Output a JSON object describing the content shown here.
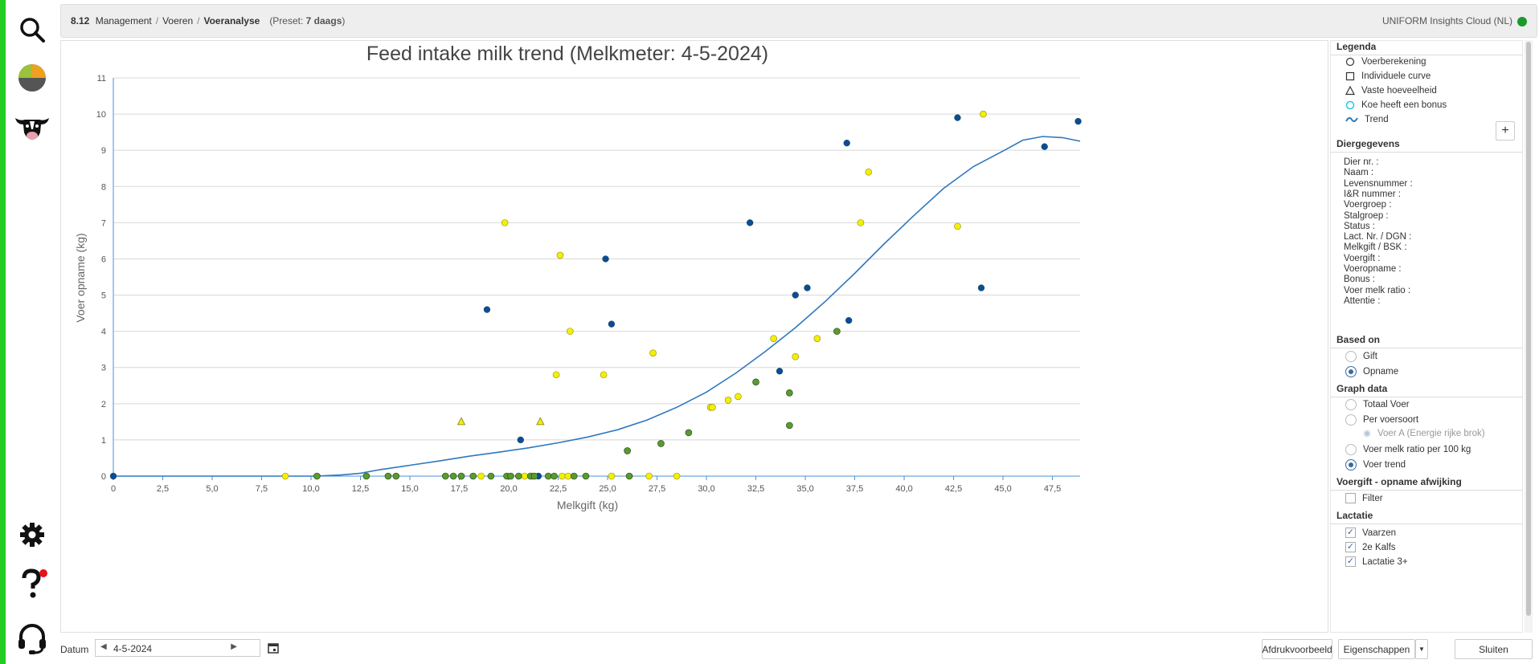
{
  "nav": {
    "items": [
      {
        "icon": "search-icon"
      },
      {
        "icon": "pie-chart-icon"
      },
      {
        "icon": "cow-icon"
      },
      {
        "icon": "gear-icon"
      },
      {
        "icon": "help-icon"
      },
      {
        "icon": "headset-icon"
      }
    ]
  },
  "header": {
    "code": "8.12",
    "crumb1": "Management",
    "crumb2": "Voeren",
    "crumb3": "Voeranalyse",
    "preset_prefix": "(Preset: ",
    "preset_value": "7 daags",
    "preset_suffix": ")",
    "cloud": "UNIFORM Insights Cloud (NL)"
  },
  "colors": {
    "blue": "#0a4c96",
    "yellow": "#f5ef00",
    "green": "#5a9a2e",
    "trend": "#2f78bd",
    "axis": "#4a90d9"
  },
  "chart_data": {
    "type": "scatter",
    "title": "Feed intake milk trend (Melkmeter: 4-5-2024)",
    "xlabel": "Melkgift (kg)",
    "ylabel": "Voer opname (kg)",
    "xlim": [
      0,
      48.9
    ],
    "ylim": [
      0,
      11
    ],
    "xticks": [
      "0",
      "2,5",
      "5,0",
      "7,5",
      "10,0",
      "12,5",
      "15,0",
      "17,5",
      "20,0",
      "22,5",
      "25,0",
      "27,5",
      "30,0",
      "32,5",
      "35,0",
      "37,5",
      "40,0",
      "42,5",
      "45,0",
      "47,5"
    ],
    "yticks": [
      "0",
      "1",
      "2",
      "3",
      "4",
      "5",
      "6",
      "7",
      "8",
      "9",
      "10",
      "11"
    ],
    "grid": true,
    "series": [
      {
        "color": "blue",
        "points": [
          [
            0,
            0
          ],
          [
            18.9,
            4.6
          ],
          [
            20.6,
            1.0
          ],
          [
            21.5,
            0
          ],
          [
            24.9,
            6.0
          ],
          [
            25.2,
            4.2
          ],
          [
            32.2,
            7.0
          ],
          [
            33.7,
            2.9
          ],
          [
            34.5,
            5.0
          ],
          [
            35.1,
            5.2
          ],
          [
            37.1,
            9.2
          ],
          [
            37.2,
            4.3
          ],
          [
            42.7,
            9.9
          ],
          [
            43.9,
            5.2
          ],
          [
            47.1,
            9.1
          ],
          [
            48.8,
            9.8
          ]
        ]
      },
      {
        "color": "yellow",
        "points": [
          [
            8.7,
            0
          ],
          [
            19.8,
            7.0
          ],
          [
            22.4,
            2.8
          ],
          [
            22.6,
            6.1
          ],
          [
            23.1,
            4.0
          ],
          [
            24.8,
            2.8
          ],
          [
            25.2,
            0
          ],
          [
            27.1,
            0
          ],
          [
            27.3,
            3.4
          ],
          [
            28.5,
            0
          ],
          [
            30.2,
            1.9
          ],
          [
            30.3,
            1.9
          ],
          [
            31.1,
            2.1
          ],
          [
            31.6,
            2.2
          ],
          [
            33.4,
            3.8
          ],
          [
            34.5,
            3.3
          ],
          [
            35.6,
            3.8
          ],
          [
            37.8,
            7.0
          ],
          [
            38.2,
            8.4
          ],
          [
            42.7,
            6.9
          ],
          [
            44.0,
            10.0
          ],
          [
            17.6,
            0
          ],
          [
            18.6,
            0
          ],
          [
            21.2,
            0
          ],
          [
            22.7,
            0
          ],
          [
            23.0,
            0
          ],
          [
            20.8,
            0
          ]
        ]
      },
      {
        "color": "green",
        "points": [
          [
            10.3,
            0
          ],
          [
            12.8,
            0
          ],
          [
            13.9,
            0
          ],
          [
            14.3,
            0
          ],
          [
            16.8,
            0
          ],
          [
            17.2,
            0
          ],
          [
            17.6,
            0
          ],
          [
            18.2,
            0
          ],
          [
            19.1,
            0
          ],
          [
            19.9,
            0
          ],
          [
            20.1,
            0
          ],
          [
            20.5,
            0
          ],
          [
            21.1,
            0
          ],
          [
            21.3,
            0
          ],
          [
            22.0,
            0
          ],
          [
            22.3,
            0
          ],
          [
            23.3,
            0
          ],
          [
            23.9,
            0
          ],
          [
            26.0,
            0.7
          ],
          [
            26.1,
            0
          ],
          [
            27.7,
            0.9
          ],
          [
            29.1,
            1.2
          ],
          [
            32.5,
            2.6
          ],
          [
            34.2,
            2.3
          ],
          [
            34.2,
            1.4
          ],
          [
            36.6,
            4.0
          ]
        ]
      }
    ],
    "triangles": [
      [
        17.6,
        1.5
      ],
      [
        21.6,
        1.5
      ]
    ],
    "trend": [
      [
        10.2,
        0
      ],
      [
        11.5,
        0.03
      ],
      [
        12.5,
        0.08
      ],
      [
        13.5,
        0.18
      ],
      [
        15,
        0.3
      ],
      [
        16.5,
        0.42
      ],
      [
        18,
        0.55
      ],
      [
        19.5,
        0.66
      ],
      [
        21,
        0.78
      ],
      [
        22.5,
        0.92
      ],
      [
        24,
        1.08
      ],
      [
        25.5,
        1.28
      ],
      [
        27,
        1.55
      ],
      [
        28.5,
        1.9
      ],
      [
        30,
        2.32
      ],
      [
        31.5,
        2.85
      ],
      [
        33,
        3.45
      ],
      [
        34.5,
        4.1
      ],
      [
        36,
        4.82
      ],
      [
        37.5,
        5.6
      ],
      [
        39,
        6.42
      ],
      [
        40.5,
        7.2
      ],
      [
        42,
        7.95
      ],
      [
        43.5,
        8.55
      ],
      [
        45,
        8.98
      ],
      [
        46,
        9.28
      ],
      [
        47,
        9.38
      ],
      [
        48,
        9.35
      ],
      [
        48.9,
        9.25
      ]
    ]
  },
  "legend": {
    "title": "Legenda",
    "items": [
      "Voerberekening",
      "Individuele curve",
      "Vaste hoeveelheid",
      "Koe heeft een bonus",
      "Trend"
    ]
  },
  "animal": {
    "title": "Diergegevens",
    "fields": [
      "Dier nr. :",
      "Naam :",
      "Levensnummer :",
      "I&R nummer :",
      "Voergroep :",
      "Stalgroep :",
      "Status :",
      "Lact. Nr. / DGN :",
      "Melkgift / BSK :",
      "Voergift :",
      "Voeropname :",
      "Bonus :",
      "Voer melk ratio :",
      "Attentie :"
    ]
  },
  "based_on": {
    "title": "Based on",
    "options": [
      "Gift",
      "Opname"
    ],
    "selected": 1
  },
  "graph_data": {
    "title": "Graph data",
    "options": [
      "Totaal Voer",
      "Per voersoort",
      "Voer A (Energie rijke brok)",
      "Voer melk ratio per 100 kg",
      "Voer trend"
    ],
    "selected": 4
  },
  "deviation": {
    "title": "Voergift - opname afwijking",
    "filter_label": "Filter"
  },
  "lactation": {
    "title": "Lactatie",
    "items": [
      "Vaarzen",
      "2e Kalfs",
      "Lactatie 3+"
    ]
  },
  "footer": {
    "date_label": "Datum",
    "date_value": "4-5-2024",
    "print_preview": "Afdrukvoorbeeld",
    "properties": "Eigenschappen",
    "close": "Sluiten"
  }
}
